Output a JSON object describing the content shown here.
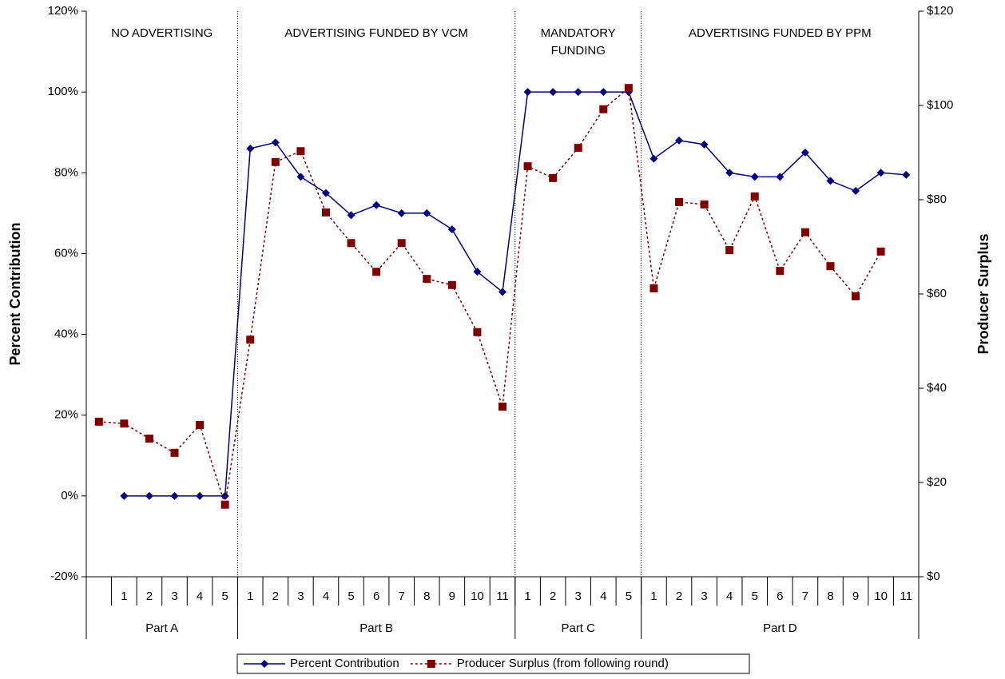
{
  "chart_data": {
    "type": "line",
    "categories": [
      null,
      "1",
      "2",
      "3",
      "4",
      "5",
      "1",
      "2",
      "3",
      "4",
      "5",
      "6",
      "7",
      "8",
      "9",
      "10",
      "11",
      "1",
      "2",
      "3",
      "4",
      "5",
      "1",
      "2",
      "3",
      "4",
      "5",
      "6",
      "7",
      "8",
      "9",
      "10",
      "11"
    ],
    "groups": [
      {
        "name": "Part A",
        "count": 6,
        "annotation": [
          "NO ADVERTISING"
        ]
      },
      {
        "name": "Part B",
        "count": 11,
        "annotation": [
          "ADVERTISING FUNDED BY VCM"
        ]
      },
      {
        "name": "Part C",
        "count": 5,
        "annotation": [
          "MANDATORY",
          "FUNDING"
        ]
      },
      {
        "name": "Part D",
        "count": 11,
        "annotation": [
          "ADVERTISING FUNDED BY PPM"
        ]
      }
    ],
    "series": [
      {
        "name": "Percent Contribution",
        "color": "#000080",
        "marker": "diamond",
        "dash": "solid",
        "values": [
          null,
          0,
          0,
          0,
          0,
          0,
          86,
          87.5,
          79,
          75,
          69.5,
          72,
          70,
          70,
          66,
          55.5,
          50.5,
          100,
          100,
          100,
          100,
          100,
          83.5,
          88,
          87,
          80,
          79,
          79,
          85,
          78,
          75.5,
          80,
          79.5
        ]
      },
      {
        "name": "Producer Surplus (from following round)",
        "color": "#800000",
        "marker": "square",
        "dash": "dotted",
        "axis": "y2",
        "values": [
          32.9,
          32.5,
          29.3,
          26.3,
          32.2,
          15.3,
          50.3,
          88.0,
          90.3,
          77.3,
          70.8,
          64.7,
          70.8,
          63.2,
          61.9,
          51.9,
          36.1,
          87.1,
          84.6,
          91.0,
          99.2,
          103.7,
          61.2,
          79.5,
          79.0,
          69.3,
          80.7,
          64.9,
          73.1,
          65.9,
          59.5,
          69.0,
          null
        ]
      }
    ],
    "y_label": "Percent Contribution",
    "y2_label": "Producer Surplus",
    "ylim": [
      -20,
      120
    ],
    "yticks": [
      {
        "value": -20,
        "label": "-20%"
      },
      {
        "value": 0,
        "label": "0%"
      },
      {
        "value": 20,
        "label": "20%"
      },
      {
        "value": 40,
        "label": "40%"
      },
      {
        "value": 60,
        "label": "60%"
      },
      {
        "value": 80,
        "label": "80%"
      },
      {
        "value": 100,
        "label": "100%"
      },
      {
        "value": 120,
        "label": "120%"
      }
    ],
    "y2lim": [
      0,
      120
    ],
    "y2ticks": [
      {
        "value": 0,
        "label": "$0"
      },
      {
        "value": 20,
        "label": "$20"
      },
      {
        "value": 40,
        "label": "$40"
      },
      {
        "value": 60,
        "label": "$60"
      },
      {
        "value": 80,
        "label": "$80"
      },
      {
        "value": 100,
        "label": "$100"
      },
      {
        "value": 120,
        "label": "$120"
      }
    ],
    "legend": "bottom"
  }
}
